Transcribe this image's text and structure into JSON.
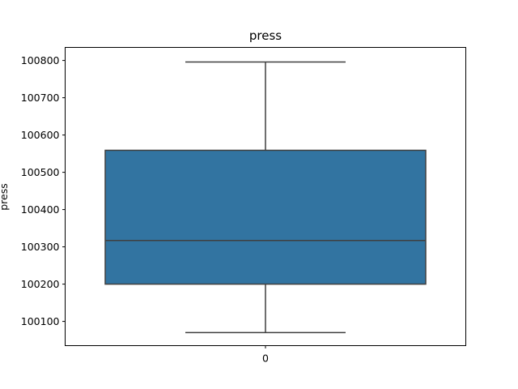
{
  "chart_data": {
    "type": "box",
    "title": "press",
    "ylabel": "press",
    "xlabel": "",
    "categories": [
      "0"
    ],
    "ylim": [
      100035,
      100835
    ],
    "yticks": [
      100100,
      100200,
      100300,
      100400,
      100500,
      100600,
      100700,
      100800
    ],
    "ytick_labels": [
      "100100",
      "100200",
      "100300",
      "100400",
      "100500",
      "100600",
      "100700",
      "100800"
    ],
    "grid": false,
    "boxes": [
      {
        "category": "0",
        "whisker_low": 100070,
        "q1": 100200,
        "median": 100317,
        "q3": 100559,
        "whisker_high": 100796
      }
    ],
    "colors": {
      "box_fill": "#3274a1",
      "box_edge": "#3f3f3f",
      "axes_edge": "#000000"
    }
  }
}
